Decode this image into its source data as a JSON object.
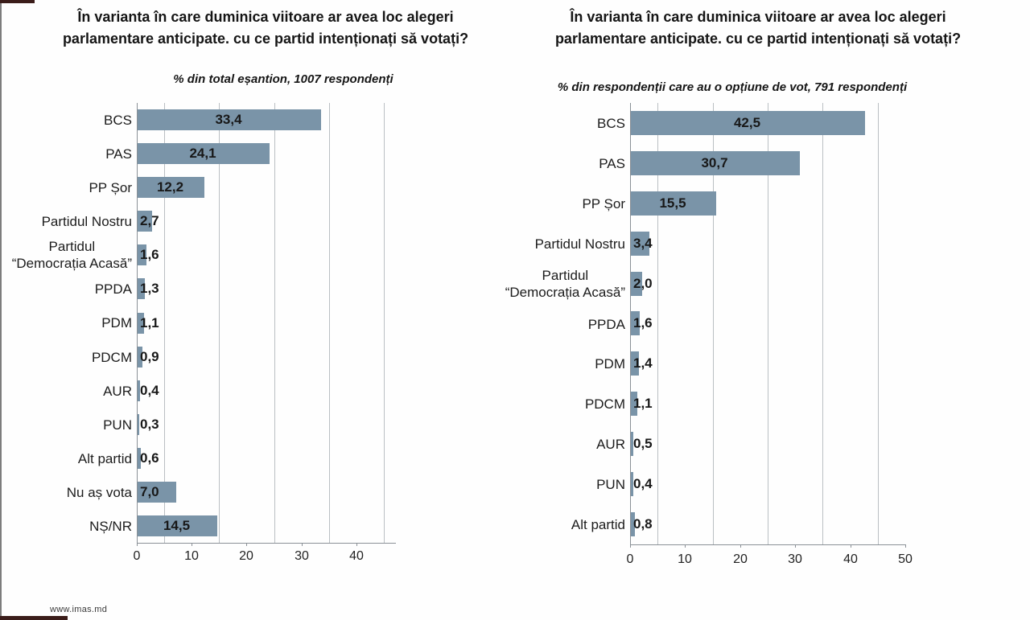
{
  "page": {
    "footer_link": "www.imas.md"
  },
  "theme": {
    "bar_color": "#7A94A8",
    "grid_color": "#babfc3",
    "axis_color": "#8a9096",
    "accent_bar_color": "#3b1d1a",
    "slide_border_color": "#7d7d7d"
  },
  "chart_data": [
    {
      "type": "bar",
      "orientation": "horizontal",
      "title": "În varianta în care duminica viitoare ar avea loc alegeri parlamentare anticipate. cu ce partid intenționați să votați?",
      "subtitle": "% din total eșantion, 1007 respondenți",
      "categories": [
        "BCS",
        "PAS",
        "PP Șor",
        "Partidul Nostru",
        "Partidul\n“Democrația Acasă”",
        "PPDA",
        "PDM",
        "PDCM",
        "AUR",
        "PUN",
        "Alt partid",
        "Nu aș vota",
        "NȘ/NR"
      ],
      "values": [
        33.4,
        24.1,
        12.2,
        2.7,
        1.6,
        1.3,
        1.1,
        0.9,
        0.4,
        0.3,
        0.6,
        7.0,
        14.5
      ],
      "value_labels": [
        "33,4",
        "24,1",
        "12,2",
        "2,7",
        "1,6",
        "1,3",
        "1,1",
        "0,9",
        "0,4",
        "0,3",
        "0,6",
        "7,0",
        "14,5"
      ],
      "xlim": [
        0,
        47.2
      ],
      "ticks": [
        0,
        10,
        20,
        30,
        40
      ],
      "gridline_values": [
        5,
        15,
        25,
        35,
        45
      ],
      "grid": true,
      "legend": "none"
    },
    {
      "type": "bar",
      "orientation": "horizontal",
      "title": "În varianta în care duminica viitoare ar avea loc alegeri parlamentare anticipate. cu ce partid intenționați să votați?",
      "subtitle": "% din respondenții care au o opțiune de vot, 791 respondenți",
      "categories": [
        "BCS",
        "PAS",
        "PP Șor",
        "Partidul Nostru",
        "Partidul\n“Democrația Acasă”",
        "PPDA",
        "PDM",
        "PDCM",
        "AUR",
        "PUN",
        "Alt partid"
      ],
      "values": [
        42.5,
        30.7,
        15.5,
        3.4,
        2.0,
        1.6,
        1.4,
        1.1,
        0.5,
        0.4,
        0.8
      ],
      "value_labels": [
        "42,5",
        "30,7",
        "15,5",
        "3,4",
        "2,0",
        "1,6",
        "1,4",
        "1,1",
        "0,5",
        "0,4",
        "0,8"
      ],
      "xlim": [
        0,
        50
      ],
      "ticks": [
        0,
        10,
        20,
        30,
        40,
        50
      ],
      "gridline_values": [
        5,
        15,
        25,
        35,
        45
      ],
      "grid": true,
      "legend": "none"
    }
  ]
}
